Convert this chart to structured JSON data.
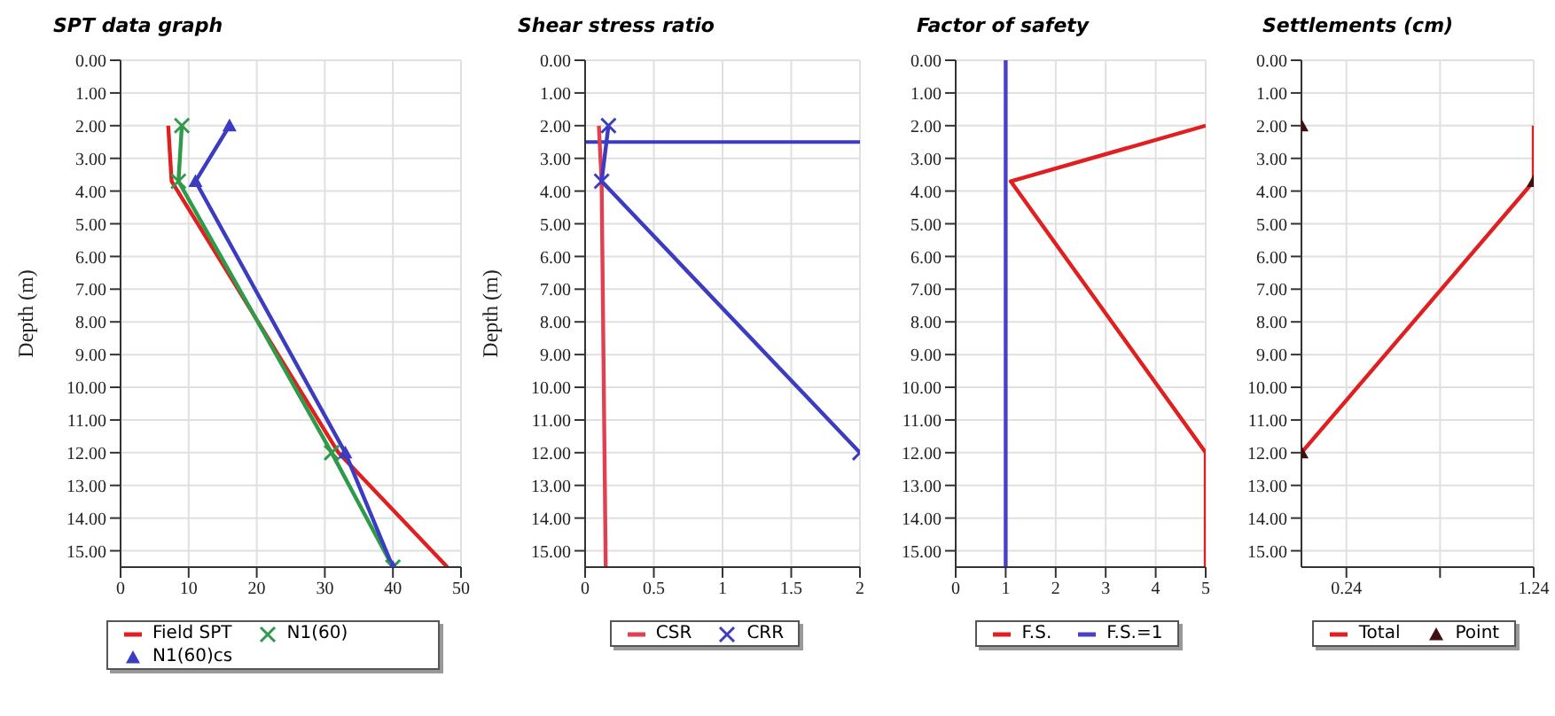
{
  "chart_data": [
    {
      "type": "line",
      "title": "SPT data graph",
      "ylabel": "Depth (m)",
      "xlim": [
        0,
        50
      ],
      "xticks": [
        0,
        10,
        20,
        30,
        40,
        50
      ],
      "ylim": [
        15.5,
        0
      ],
      "yticks": [
        {
          "value": 0,
          "label": "0.00"
        },
        {
          "value": 1,
          "label": "1.00"
        },
        {
          "value": 2,
          "label": "2.00"
        },
        {
          "value": 3,
          "label": "3.00"
        },
        {
          "value": 4,
          "label": "4.00"
        },
        {
          "value": 5,
          "label": "5.00"
        },
        {
          "value": 6,
          "label": "6.00"
        },
        {
          "value": 7,
          "label": "7.00"
        },
        {
          "value": 8,
          "label": "8.00"
        },
        {
          "value": 9,
          "label": "9.00"
        },
        {
          "value": 10,
          "label": "10.00"
        },
        {
          "value": 11,
          "label": "11.00"
        },
        {
          "value": 12,
          "label": "12.00"
        },
        {
          "value": 13,
          "label": "13.00"
        },
        {
          "value": 14,
          "label": "14.00"
        },
        {
          "value": 15,
          "label": "15.00"
        }
      ],
      "grid": true,
      "legend": "bottom",
      "series": [
        {
          "name": "Field SPT",
          "color": "#e02020",
          "x": [
            7,
            7.5,
            32,
            48
          ],
          "values": [
            2,
            3.7,
            12,
            15.5
          ]
        },
        {
          "name": "N1(60)",
          "color": "#2e9a4a",
          "marker": "cross",
          "x": [
            9,
            8.5,
            31,
            40
          ],
          "values": [
            2,
            3.7,
            12,
            15.5
          ]
        },
        {
          "name": "N1(60)cs",
          "color": "#3c3cc0",
          "marker": "triangle",
          "x": [
            16,
            11,
            33,
            40
          ],
          "values": [
            2,
            3.7,
            12,
            15.5
          ]
        }
      ]
    },
    {
      "type": "line",
      "title": "Shear stress ratio",
      "ylabel": "Depth (m)",
      "xlim": [
        0,
        2
      ],
      "xticks": [
        0,
        0.5,
        1,
        1.5,
        2
      ],
      "ylim": [
        15.5,
        0
      ],
      "yticks": [
        {
          "value": 0,
          "label": "0.00"
        },
        {
          "value": 1,
          "label": "1.00"
        },
        {
          "value": 2,
          "label": "2.00"
        },
        {
          "value": 3,
          "label": "3.00"
        },
        {
          "value": 4,
          "label": "4.00"
        },
        {
          "value": 5,
          "label": "5.00"
        },
        {
          "value": 6,
          "label": "6.00"
        },
        {
          "value": 7,
          "label": "7.00"
        },
        {
          "value": 8,
          "label": "8.00"
        },
        {
          "value": 9,
          "label": "9.00"
        },
        {
          "value": 10,
          "label": "10.00"
        },
        {
          "value": 11,
          "label": "11.00"
        },
        {
          "value": 12,
          "label": "12.00"
        },
        {
          "value": 13,
          "label": "13.00"
        },
        {
          "value": 14,
          "label": "14.00"
        },
        {
          "value": 15,
          "label": "15.00"
        }
      ],
      "grid": true,
      "legend": "bottom",
      "ref_lines": [
        {
          "axis": "y",
          "value": 2.5,
          "color": "#3c3cc0"
        }
      ],
      "series": [
        {
          "name": "CSR",
          "color": "#e04050",
          "x": [
            0.1,
            0.12,
            0.15
          ],
          "values": [
            2,
            3.7,
            15.5
          ]
        },
        {
          "name": "CRR",
          "color": "#3c3cc0",
          "marker": "cross",
          "x": [
            0.17,
            0.12,
            2
          ],
          "values": [
            2,
            3.7,
            12
          ]
        }
      ]
    },
    {
      "type": "line",
      "title": "Factor of safety",
      "xlim": [
        0,
        5
      ],
      "xticks": [
        0,
        1,
        2,
        3,
        4,
        5
      ],
      "ylim": [
        15.5,
        0
      ],
      "yticks": [
        {
          "value": 0,
          "label": "0.00"
        },
        {
          "value": 1,
          "label": "1.00"
        },
        {
          "value": 2,
          "label": "2.00"
        },
        {
          "value": 3,
          "label": "3.00"
        },
        {
          "value": 4,
          "label": "4.00"
        },
        {
          "value": 5,
          "label": "5.00"
        },
        {
          "value": 6,
          "label": "6.00"
        },
        {
          "value": 7,
          "label": "7.00"
        },
        {
          "value": 8,
          "label": "8.00"
        },
        {
          "value": 9,
          "label": "9.00"
        },
        {
          "value": 10,
          "label": "10.00"
        },
        {
          "value": 11,
          "label": "11.00"
        },
        {
          "value": 12,
          "label": "12.00"
        },
        {
          "value": 13,
          "label": "13.00"
        },
        {
          "value": 14,
          "label": "14.00"
        },
        {
          "value": 15,
          "label": "15.00"
        }
      ],
      "grid": true,
      "legend": "bottom",
      "series": [
        {
          "name": "F.S.",
          "color": "#e02020",
          "x": [
            5,
            1.1,
            5,
            5
          ],
          "values": [
            2,
            3.7,
            12,
            15.5
          ]
        },
        {
          "name": "F.S.=1",
          "color": "#4a40c8",
          "x": [
            1,
            1
          ],
          "values": [
            0,
            15.5
          ]
        }
      ]
    },
    {
      "type": "line",
      "title": "Settlements (cm)",
      "xlim": [
        0,
        1.24
      ],
      "xticks": [
        0.24,
        {
          "value": 0.74,
          "label": null
        },
        1.24
      ],
      "ylim": [
        15.5,
        0
      ],
      "yticks": [
        {
          "value": 0,
          "label": "0.00"
        },
        {
          "value": 1,
          "label": "1.00"
        },
        {
          "value": 2,
          "label": "2.00"
        },
        {
          "value": 3,
          "label": "3.00"
        },
        {
          "value": 4,
          "label": "4.00"
        },
        {
          "value": 5,
          "label": "5.00"
        },
        {
          "value": 6,
          "label": "6.00"
        },
        {
          "value": 7,
          "label": "7.00"
        },
        {
          "value": 8,
          "label": "8.00"
        },
        {
          "value": 9,
          "label": "9.00"
        },
        {
          "value": 10,
          "label": "10.00"
        },
        {
          "value": 11,
          "label": "11.00"
        },
        {
          "value": 12,
          "label": "12.00"
        },
        {
          "value": 13,
          "label": "13.00"
        },
        {
          "value": 14,
          "label": "14.00"
        },
        {
          "value": 15,
          "label": "15.00"
        }
      ],
      "grid": true,
      "legend": "bottom",
      "series": [
        {
          "name": "Total",
          "color": "#e02020",
          "x": [
            1.24,
            1.24,
            0
          ],
          "values": [
            2,
            3.7,
            12
          ]
        },
        {
          "name": "Point",
          "type": "scatter",
          "color": "#401010",
          "marker": "triangle",
          "x": [
            0,
            1.24,
            0
          ],
          "values": [
            2,
            3.7,
            12
          ]
        }
      ]
    }
  ]
}
